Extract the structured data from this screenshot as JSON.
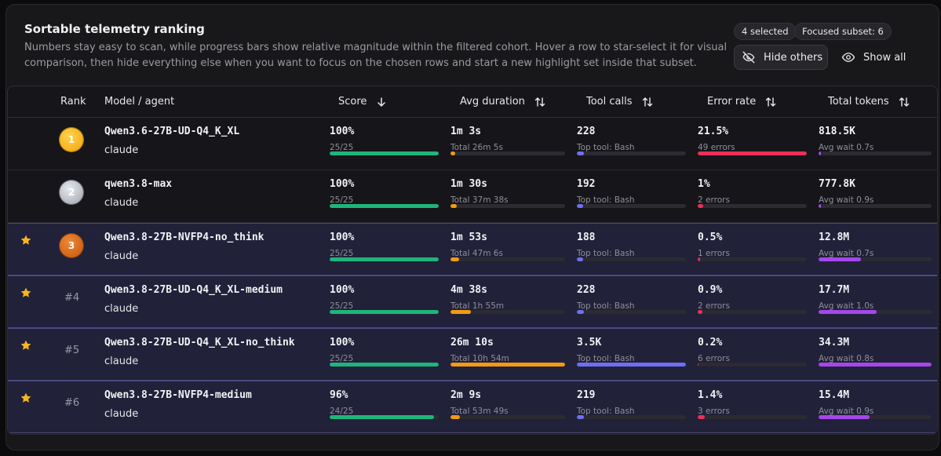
{
  "header": {
    "title": "Sortable telemetry ranking",
    "description": "Numbers stay easy to scan, while progress bars show relative magnitude within the filtered cohort. Hover a row to star-select it for visual comparison, then hide everything else when you want to focus on the chosen rows and start a new highlight set inside that subset.",
    "selected_badge": "4 selected",
    "focused_badge": "Focused subset: 6",
    "hide_others_label": "Hide others",
    "show_all_label": "Show all"
  },
  "columns": {
    "rank": "Rank",
    "model": "Model / agent",
    "score": "Score",
    "duration": "Avg duration",
    "tools": "Tool calls",
    "error": "Error rate",
    "tokens": "Total tokens"
  },
  "colors": {
    "score": "#1fb57a",
    "duration": "#f29a13",
    "tools": "#6f6ff0",
    "error": "#ee2f58",
    "tokens": "#a547ea"
  },
  "rows": [
    {
      "starred": false,
      "rank_label": "1",
      "medal": "gold",
      "model": "Qwen3.6-27B-UD-Q4_K_XL",
      "agent": "claude",
      "score": "100%",
      "score_sub": "25/25",
      "score_frac": 1.0,
      "duration": "1m 3s",
      "duration_sub": "Total 26m 5s",
      "duration_frac": 0.04,
      "tools": "228",
      "tools_sub": "Top tool: Bash",
      "tools_frac": 0.065,
      "error": "21.5%",
      "error_sub": "49 errors",
      "error_frac": 1.0,
      "tokens": "818.5K",
      "tokens_sub": "Avg wait 0.7s",
      "tokens_frac": 0.024
    },
    {
      "starred": false,
      "rank_label": "2",
      "medal": "silver",
      "model": "qwen3.8-max",
      "agent": "claude",
      "score": "100%",
      "score_sub": "25/25",
      "score_frac": 1.0,
      "duration": "1m 30s",
      "duration_sub": "Total 37m 38s",
      "duration_frac": 0.058,
      "tools": "192",
      "tools_sub": "Top tool: Bash",
      "tools_frac": 0.055,
      "error": "1%",
      "error_sub": "2 errors",
      "error_frac": 0.047,
      "tokens": "777.8K",
      "tokens_sub": "Avg wait 0.9s",
      "tokens_frac": 0.023
    },
    {
      "starred": true,
      "rank_label": "3",
      "medal": "bronze",
      "model": "Qwen3.8-27B-NVFP4-no_think",
      "agent": "claude",
      "score": "100%",
      "score_sub": "25/25",
      "score_frac": 1.0,
      "duration": "1m 53s",
      "duration_sub": "Total 47m 6s",
      "duration_frac": 0.072,
      "tools": "188",
      "tools_sub": "Top tool: Bash",
      "tools_frac": 0.054,
      "error": "0.5%",
      "error_sub": "1 errors",
      "error_frac": 0.023,
      "tokens": "12.8M",
      "tokens_sub": "Avg wait 0.7s",
      "tokens_frac": 0.373
    },
    {
      "starred": true,
      "rank_label": "#4",
      "medal": "",
      "model": "Qwen3.8-27B-UD-Q4_K_XL-medium",
      "agent": "claude",
      "score": "100%",
      "score_sub": "25/25",
      "score_frac": 1.0,
      "duration": "4m 38s",
      "duration_sub": "Total 1h 55m",
      "duration_frac": 0.177,
      "tools": "228",
      "tools_sub": "Top tool: Bash",
      "tools_frac": 0.065,
      "error": "0.9%",
      "error_sub": "2 errors",
      "error_frac": 0.042,
      "tokens": "17.7M",
      "tokens_sub": "Avg wait 1.0s",
      "tokens_frac": 0.516
    },
    {
      "starred": true,
      "rank_label": "#5",
      "medal": "",
      "model": "Qwen3.8-27B-UD-Q4_K_XL-no_think",
      "agent": "claude",
      "score": "100%",
      "score_sub": "25/25",
      "score_frac": 1.0,
      "duration": "26m 10s",
      "duration_sub": "Total 10h 54m",
      "duration_frac": 1.0,
      "tools": "3.5K",
      "tools_sub": "Top tool: Bash",
      "tools_frac": 1.0,
      "error": "0.2%",
      "error_sub": "6 errors",
      "error_frac": 0.01,
      "tokens": "34.3M",
      "tokens_sub": "Avg wait 0.8s",
      "tokens_frac": 1.0
    },
    {
      "starred": true,
      "rank_label": "#6",
      "medal": "",
      "model": "Qwen3.8-27B-NVFP4-medium",
      "agent": "claude",
      "score": "96%",
      "score_sub": "24/25",
      "score_frac": 0.96,
      "duration": "2m 9s",
      "duration_sub": "Total 53m 49s",
      "duration_frac": 0.082,
      "tools": "219",
      "tools_sub": "Top tool: Bash",
      "tools_frac": 0.063,
      "error": "1.4%",
      "error_sub": "3 errors",
      "error_frac": 0.065,
      "tokens": "15.4M",
      "tokens_sub": "Avg wait 0.9s",
      "tokens_frac": 0.449
    }
  ]
}
